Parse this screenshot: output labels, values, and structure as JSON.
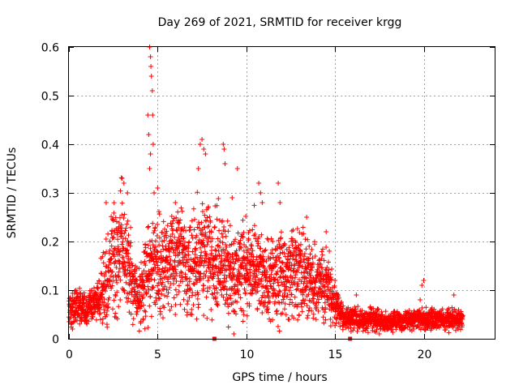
{
  "chart_data": {
    "type": "scatter",
    "title": "Day 269 of 2021, SRMTID for receiver krgg",
    "xlabel": "GPS time / hours",
    "ylabel": "SRMTID / TECUs",
    "xlim": [
      0,
      24
    ],
    "ylim": [
      0,
      0.6
    ],
    "xticks": [
      0,
      5,
      10,
      15,
      20
    ],
    "yticks": [
      0,
      0.1,
      0.2,
      0.3,
      0.4,
      0.5,
      0.6
    ],
    "xtick_labels": [
      "0",
      "5",
      "10",
      "15",
      "20"
    ],
    "ytick_labels": [
      "0",
      "0.1",
      "0.2",
      "0.3",
      "0.4",
      "0.5",
      "0.6"
    ],
    "grid": true,
    "marker_color": "#ff0000",
    "marker": "plus",
    "series": [
      {
        "name": "SRMTID",
        "trend": [
          [
            0.0,
            0.06
          ],
          [
            0.5,
            0.065
          ],
          [
            1.0,
            0.06
          ],
          [
            1.5,
            0.07
          ],
          [
            2.0,
            0.11
          ],
          [
            2.5,
            0.16
          ],
          [
            3.0,
            0.19
          ],
          [
            3.5,
            0.13
          ],
          [
            4.0,
            0.09
          ],
          [
            4.5,
            0.15
          ],
          [
            5.0,
            0.14
          ],
          [
            5.5,
            0.15
          ],
          [
            6.0,
            0.17
          ],
          [
            6.5,
            0.16
          ],
          [
            7.0,
            0.14
          ],
          [
            7.5,
            0.18
          ],
          [
            8.0,
            0.17
          ],
          [
            8.5,
            0.16
          ],
          [
            9.0,
            0.14
          ],
          [
            9.5,
            0.13
          ],
          [
            10.0,
            0.15
          ],
          [
            10.5,
            0.14
          ],
          [
            11.0,
            0.12
          ],
          [
            11.5,
            0.13
          ],
          [
            12.0,
            0.13
          ],
          [
            12.5,
            0.13
          ],
          [
            13.0,
            0.14
          ],
          [
            13.5,
            0.12
          ],
          [
            14.0,
            0.11
          ],
          [
            14.5,
            0.12
          ],
          [
            15.0,
            0.07
          ],
          [
            15.5,
            0.04
          ],
          [
            16.0,
            0.04
          ],
          [
            17.0,
            0.04
          ],
          [
            18.0,
            0.035
          ],
          [
            19.0,
            0.04
          ],
          [
            20.0,
            0.04
          ],
          [
            21.0,
            0.04
          ],
          [
            22.2,
            0.04
          ]
        ],
        "highlights": [
          [
            0.2,
            0.02
          ],
          [
            0.4,
            0.1
          ],
          [
            2.1,
            0.28
          ],
          [
            3.0,
            0.33
          ],
          [
            3.1,
            0.32
          ],
          [
            3.3,
            0.3
          ],
          [
            4.45,
            0.46
          ],
          [
            4.5,
            0.42
          ],
          [
            4.55,
            0.6
          ],
          [
            4.6,
            0.58
          ],
          [
            4.62,
            0.56
          ],
          [
            4.65,
            0.54
          ],
          [
            4.7,
            0.51
          ],
          [
            4.72,
            0.46
          ],
          [
            4.75,
            0.4
          ],
          [
            4.6,
            0.38
          ],
          [
            4.55,
            0.35
          ],
          [
            4.8,
            0.3
          ],
          [
            5.0,
            0.31
          ],
          [
            6.0,
            0.28
          ],
          [
            7.4,
            0.4
          ],
          [
            7.5,
            0.41
          ],
          [
            7.6,
            0.39
          ],
          [
            7.7,
            0.38
          ],
          [
            7.3,
            0.35
          ],
          [
            8.7,
            0.4
          ],
          [
            8.75,
            0.39
          ],
          [
            8.8,
            0.36
          ],
          [
            9.2,
            0.29
          ],
          [
            9.5,
            0.35
          ],
          [
            10.7,
            0.32
          ],
          [
            10.8,
            0.3
          ],
          [
            10.9,
            0.28
          ],
          [
            11.8,
            0.32
          ],
          [
            11.9,
            0.28
          ],
          [
            13.4,
            0.25
          ],
          [
            14.5,
            0.22
          ],
          [
            15.0,
            0.12
          ],
          [
            16.2,
            0.09
          ],
          [
            19.8,
            0.08
          ],
          [
            19.9,
            0.11
          ],
          [
            20.0,
            0.12
          ],
          [
            21.7,
            0.09
          ],
          [
            9.3,
            0.01
          ],
          [
            17.5,
            0.01
          ]
        ]
      }
    ],
    "baseline_markers": [
      8.2,
      15.85
    ]
  }
}
